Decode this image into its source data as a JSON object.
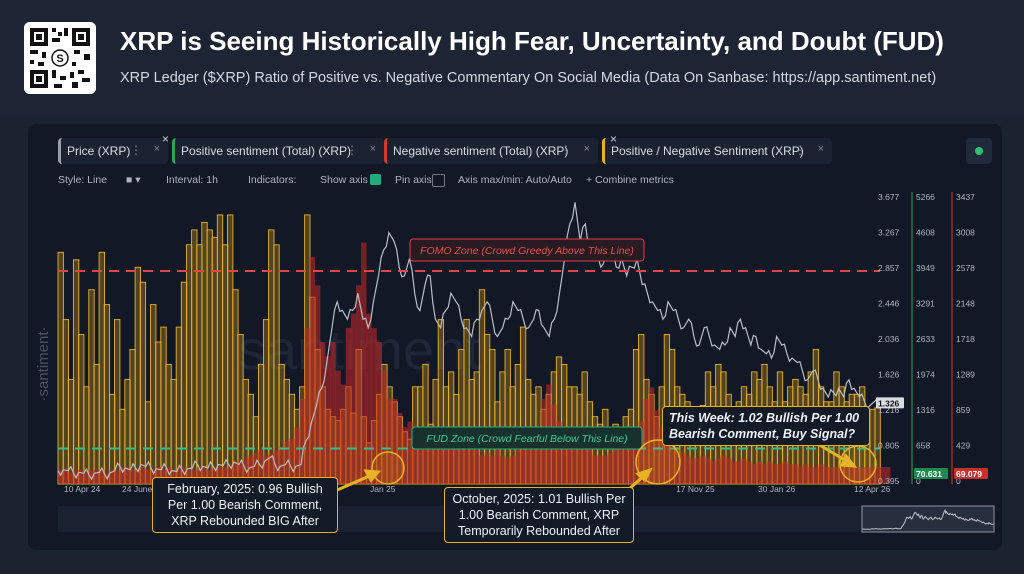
{
  "header": {
    "title": "XRP is Seeing Historically High Fear, Uncertainty, and Doubt (FUD)",
    "subtitle": "XRP Ledger ($XRP) Ratio of Positive vs. Negative Commentary On Social Media (Data On Sanbase: https://app.santiment.net)"
  },
  "legend": [
    {
      "label": "Price (XRP)",
      "color": "#9aa0aa"
    },
    {
      "label": "Positive sentiment (Total) (XRP)",
      "color": "#2fa35a"
    },
    {
      "label": "Negative sentiment (Total) (XRP)",
      "color": "#d6392b"
    },
    {
      "label": "Positive / Negative Sentiment (XRP)",
      "color": "#e6b422"
    }
  ],
  "legend_menu_glyph": "⋮",
  "legend_close_glyph": "×",
  "toolbar": {
    "style": "Style: Line",
    "interval": "Interval: 1h",
    "indicators": "Indicators:",
    "show_axis": "Show axis",
    "pin_axis": "Pin axis",
    "axis_minmax": "Axis max/min: Auto/Auto",
    "combine": "+ Combine metrics"
  },
  "watermark": "santiment",
  "side_watermark": "·santiment·",
  "zones": {
    "fomo": "FOMO Zone (Crowd Greedy Above This Line)",
    "fud": "FUD Zone (Crowd Fearful Below This Line)"
  },
  "callouts": {
    "feb": "February, 2025: 0.96 Bullish Per 1.00 Bearish Comment, XRP Rebounded BIG After",
    "oct": "October, 2025: 1.01 Bullish Per 1.00 Bearish Comment, XRP Temporarily Rebounded After",
    "week": "This Week: 1.02 Bullish Per 1.00 Bearish Comment, Buy Signal?"
  },
  "chart_data": {
    "type": "area",
    "x_labels": [
      "10 Apr 24",
      "24 June",
      "Jan 25",
      "17 Nov 25",
      "30 Jan 26",
      "12 Apr 26"
    ],
    "axes": {
      "price": [
        "3.677",
        "3.267",
        "2.857",
        "2.446",
        "2.036",
        "1.626",
        "1.216",
        "0.805",
        "0.395"
      ],
      "positive": [
        "5266",
        "4608",
        "3949",
        "3291",
        "2633",
        "1974",
        "1316",
        "658",
        "0"
      ],
      "negative": [
        "3437",
        "3008",
        "2578",
        "2148",
        "1718",
        "1289",
        "859",
        "429",
        "0"
      ]
    },
    "current": {
      "price": "1.326",
      "positive": "70.631",
      "negative": "69.079"
    },
    "price_range": [
      0.395,
      3.677
    ],
    "price_series": [
      0.55,
      0.56,
      0.55,
      0.52,
      0.53,
      0.52,
      0.5,
      0.52,
      0.53,
      0.51,
      0.52,
      0.55,
      0.6,
      0.58,
      0.56,
      0.58,
      0.62,
      0.6,
      0.58,
      0.57,
      0.56,
      0.58,
      0.55,
      0.54,
      0.56,
      0.57,
      0.58,
      0.62,
      0.6,
      0.58,
      0.6,
      0.62,
      0.61,
      0.62,
      0.65,
      0.62,
      0.6,
      0.58,
      0.6,
      0.62,
      0.66,
      0.7,
      0.62,
      0.6,
      0.62,
      0.6,
      0.6,
      0.62,
      0.9,
      1.1,
      1.3,
      1.5,
      1.8,
      2.2,
      2.5,
      2.4,
      2.3,
      2.4,
      2.6,
      2.3,
      2.2,
      2.5,
      2.8,
      3.1,
      3.3,
      3.2,
      2.9,
      2.8,
      3.0,
      2.6,
      2.4,
      2.7,
      2.8,
      2.3,
      2.2,
      2.4,
      2.6,
      2.5,
      2.3,
      2.2,
      2.1,
      2.3,
      2.4,
      2.5,
      2.3,
      2.1,
      2.2,
      2.3,
      2.5,
      2.4,
      2.3,
      2.2,
      2.3,
      2.4,
      2.2,
      2.1,
      2.3,
      2.6,
      3.0,
      3.4,
      3.65,
      3.2,
      3.4,
      3.1,
      3.0,
      2.9,
      3.1,
      3.05,
      2.9,
      3.0,
      2.8,
      2.9,
      3.0,
      2.7,
      2.6,
      2.5,
      2.4,
      2.3,
      2.5,
      2.4,
      2.3,
      2.2,
      2.3,
      2.1,
      2.0,
      2.2,
      2.1,
      2.0,
      1.95,
      2.0,
      2.2,
      2.1,
      2.3,
      2.2,
      2.0,
      2.1,
      1.95,
      1.9,
      1.85,
      2.1,
      2.0,
      1.9,
      1.85,
      1.8,
      1.7,
      1.6,
      1.7,
      1.6,
      1.5,
      1.4,
      1.45,
      1.5,
      1.4,
      1.6,
      1.5,
      1.4,
      1.35,
      1.3,
      1.35,
      1.3
    ],
    "ratio_series": [
      3.1,
      2.2,
      1.4,
      3.0,
      2.0,
      1.3,
      2.6,
      1.6,
      3.1,
      2.4,
      1.2,
      2.2,
      1.0,
      1.4,
      1.8,
      2.9,
      2.7,
      1.1,
      2.4,
      1.9,
      2.1,
      1.6,
      1.4,
      2.1,
      2.7,
      3.2,
      3.4,
      3.2,
      3.5,
      3.4,
      3.3,
      3.6,
      3.2,
      3.6,
      2.6,
      2.0,
      1.4,
      1.2,
      0.9,
      1.6,
      2.2,
      3.4,
      3.2,
      1.6,
      1.4,
      1.2,
      1.0,
      1.3,
      3.6,
      2.5,
      1.8,
      1.3,
      1.0,
      0.9,
      0.85,
      1.0,
      1.3,
      0.95,
      1.8,
      0.9,
      0.55,
      0.85,
      1.2,
      1.6,
      1.3,
      1.1,
      0.9,
      0.7,
      0.6,
      1.3,
      1.3,
      1.6,
      0.8,
      1.4,
      2.2,
      1.3,
      1.5,
      1.2,
      1.8,
      2.2,
      1.4,
      1.5,
      2.6,
      2.0,
      1.8,
      1.1,
      1.5,
      1.8,
      1.3,
      1.6,
      2.1,
      1.4,
      1.2,
      1.3,
      1.0,
      1.2,
      1.5,
      1.7,
      1.6,
      1.3,
      1.3,
      1.2,
      1.5,
      1.1,
      0.9,
      0.8,
      1.0,
      0.7,
      0.8,
      0.5,
      0.9,
      1.0,
      1.8,
      2.0,
      1.4,
      1.2,
      0.9,
      1.3,
      2.0,
      1.8,
      1.3,
      1.2,
      1.1,
      1.0,
      0.95,
      1.05,
      1.5,
      1.3,
      1.6,
      1.5,
      1.2,
      1.0,
      1.1,
      1.3,
      1.2,
      1.5,
      1.4,
      1.6,
      1.3,
      1.1,
      1.5,
      1.1,
      1.3,
      1.4,
      1.3,
      1.2,
      1.5,
      1.8,
      1.3,
      1.1,
      1.1,
      1.5,
      1.3,
      1.1,
      1.2,
      1.2,
      1.3,
      1.0,
      1.0,
      1.02
    ],
    "negative_series": [
      0.05,
      0.05,
      0.04,
      0.05,
      0.05,
      0.04,
      0.05,
      0.05,
      0.05,
      0.04,
      0.05,
      0.05,
      0.06,
      0.06,
      0.05,
      0.05,
      0.06,
      0.05,
      0.05,
      0.06,
      0.05,
      0.06,
      0.05,
      0.05,
      0.06,
      0.05,
      0.05,
      0.06,
      0.06,
      0.05,
      0.06,
      0.06,
      0.06,
      0.07,
      0.08,
      0.08,
      0.09,
      0.1,
      0.11,
      0.12,
      0.1,
      0.11,
      0.12,
      0.13,
      0.15,
      0.16,
      0.2,
      0.3,
      0.55,
      0.8,
      0.7,
      0.5,
      0.45,
      0.5,
      0.4,
      0.35,
      0.55,
      0.6,
      0.7,
      0.85,
      0.6,
      0.55,
      0.5,
      0.4,
      0.3,
      0.3,
      0.25,
      0.2,
      0.22,
      0.2,
      0.18,
      0.2,
      0.18,
      0.17,
      0.15,
      0.16,
      0.14,
      0.15,
      0.13,
      0.12,
      0.14,
      0.12,
      0.1,
      0.11,
      0.1,
      0.12,
      0.1,
      0.09,
      0.1,
      0.12,
      0.14,
      0.16,
      0.18,
      0.2,
      0.3,
      0.35,
      0.28,
      0.22,
      0.2,
      0.18,
      0.16,
      0.15,
      0.14,
      0.12,
      0.1,
      0.1,
      0.1,
      0.11,
      0.12,
      0.14,
      0.16,
      0.18,
      0.2,
      0.22,
      0.3,
      0.34,
      0.26,
      0.2,
      0.16,
      0.14,
      0.12,
      0.11,
      0.1,
      0.09,
      0.09,
      0.1,
      0.09,
      0.08,
      0.09,
      0.1,
      0.09,
      0.08,
      0.08,
      0.09,
      0.08,
      0.07,
      0.08,
      0.07,
      0.08,
      0.07,
      0.07,
      0.08,
      0.07,
      0.07,
      0.06,
      0.07,
      0.06,
      0.06,
      0.07,
      0.06,
      0.06,
      0.06,
      0.07,
      0.06,
      0.06,
      0.06,
      0.06,
      0.06,
      0.06,
      0.06,
      0.06,
      0.06
    ],
    "fomo_level": 2.857,
    "fud_level": 0.805
  }
}
